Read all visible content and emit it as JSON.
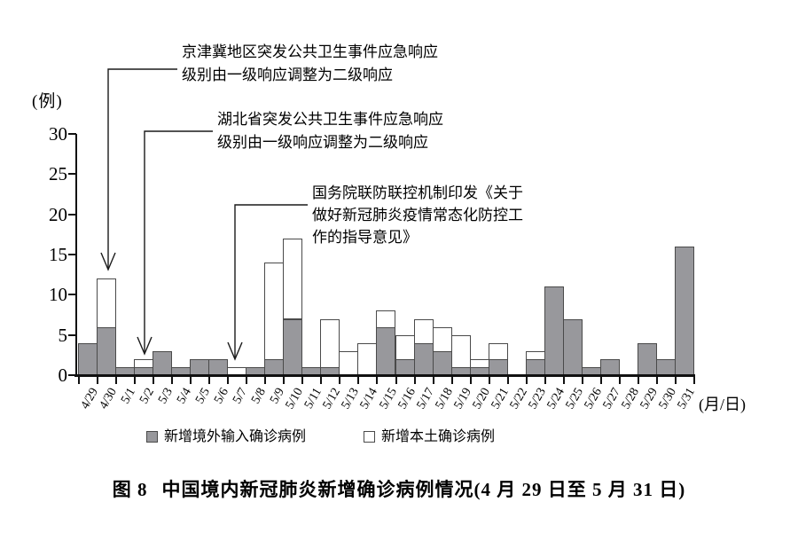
{
  "chart_data": {
    "type": "bar",
    "stacked": true,
    "title": "图8 中国境内新冠肺炎新增确诊病例情况(4月29日至5月31日)",
    "ylabel": "(例)",
    "xlabel": "(月/日)",
    "ylim": [
      0,
      30
    ],
    "yticks": [
      0,
      5,
      10,
      15,
      20,
      25,
      30
    ],
    "grid": false,
    "legend_position": "bottom",
    "categories": [
      "4/29",
      "4/30",
      "5/1",
      "5/2",
      "5/3",
      "5/4",
      "5/5",
      "5/6",
      "5/7",
      "5/8",
      "5/9",
      "5/10",
      "5/11",
      "5/12",
      "5/13",
      "5/14",
      "5/15",
      "5/16",
      "5/17",
      "5/18",
      "5/19",
      "5/20",
      "5/21",
      "5/22",
      "5/23",
      "5/24",
      "5/25",
      "5/26",
      "5/27",
      "5/28",
      "5/29",
      "5/30",
      "5/31"
    ],
    "series": [
      {
        "name": "新增境外输入确诊病例",
        "color": "#98989c",
        "values": [
          4,
          6,
          1,
          1,
          3,
          1,
          2,
          2,
          0,
          1,
          2,
          7,
          1,
          1,
          0,
          0,
          6,
          2,
          4,
          3,
          1,
          1,
          2,
          0,
          2,
          11,
          7,
          1,
          2,
          0,
          4,
          2,
          16
        ]
      },
      {
        "name": "新增本土确诊病例",
        "color": "#ffffff",
        "values": [
          0,
          6,
          0,
          1,
          0,
          0,
          0,
          0,
          1,
          0,
          12,
          10,
          0,
          6,
          3,
          4,
          2,
          3,
          3,
          3,
          4,
          1,
          2,
          0,
          1,
          0,
          0,
          0,
          0,
          0,
          0,
          0,
          0
        ]
      }
    ]
  },
  "annotations": [
    {
      "target": "4/30",
      "line1": "京津冀地区突发公共卫生事件应急响应",
      "line2": "级别由一级响应调整为二级响应"
    },
    {
      "target": "5/2",
      "line1": "湖北省突发公共卫生事件应急响应",
      "line2": "级别由一级响应调整为二级响应"
    },
    {
      "target": "5/7",
      "line1": "国务院联防联控机制印发《关于",
      "line2": "做好新冠肺炎疫情常态化防控工",
      "line3": "作的指导意见》"
    }
  ],
  "legend": {
    "imported": "新增境外输入确诊病例",
    "local": "新增本土确诊病例"
  },
  "caption": {
    "fig_label": "图 8",
    "title": "中国境内新冠肺炎新增确诊病例情况(4 月 29 日至 5 月 31 日)"
  }
}
